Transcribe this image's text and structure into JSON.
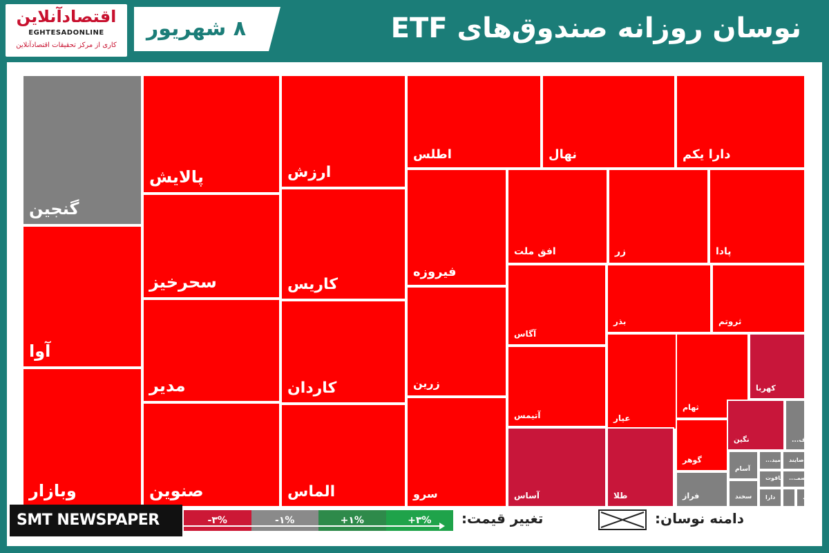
{
  "header": {
    "logo_title": "اقتصادآنلاین",
    "logo_en": "EGHTESADONLINE",
    "logo_tagline": "کاری از مرکز تحقیقات اقتصادآنلاین",
    "date": "۸ شهریور",
    "title": "نوسان روزانه صندوق‌های ETF"
  },
  "legend": {
    "price_change_label": "تغییر قیمت:",
    "range_label": "دامنه نوسان:",
    "scale": [
      "-۳%",
      "-۱%",
      "+۱%",
      "+۳%"
    ],
    "scale_colors": [
      "#cc1836",
      "#8a8a8a",
      "#2e8a4a",
      "#1fa34a"
    ]
  },
  "brand": "SMT NEWSPAPER",
  "chart_data": {
    "type": "treemap",
    "colors": {
      "negative": "#ff0000",
      "slight_negative": "#c8163a",
      "neutral": "#808080"
    },
    "tiles": [
      {
        "name": "گنجین",
        "color": "neutral"
      },
      {
        "name": "آوا",
        "color": "negative"
      },
      {
        "name": "وبازار",
        "color": "negative"
      },
      {
        "name": "پالایش",
        "color": "negative"
      },
      {
        "name": "سحرخیز",
        "color": "negative"
      },
      {
        "name": "مدیر",
        "color": "negative"
      },
      {
        "name": "صنوین",
        "color": "negative"
      },
      {
        "name": "ارزش",
        "color": "negative"
      },
      {
        "name": "کاریس",
        "color": "negative"
      },
      {
        "name": "کاردان",
        "color": "negative"
      },
      {
        "name": "الماس",
        "color": "negative"
      },
      {
        "name": "اطلس",
        "color": "negative"
      },
      {
        "name": "نهال",
        "color": "negative"
      },
      {
        "name": "دارا یکم",
        "color": "negative"
      },
      {
        "name": "فیروزه",
        "color": "negative"
      },
      {
        "name": "زرین",
        "color": "negative"
      },
      {
        "name": "سرو",
        "color": "negative"
      },
      {
        "name": "افق ملت",
        "color": "negative"
      },
      {
        "name": "زر",
        "color": "negative"
      },
      {
        "name": "پادا",
        "color": "negative"
      },
      {
        "name": "آگاس",
        "color": "negative"
      },
      {
        "name": "بذر",
        "color": "negative"
      },
      {
        "name": "ثروتم",
        "color": "negative"
      },
      {
        "name": "آتیمس",
        "color": "negative"
      },
      {
        "name": "عیار",
        "color": "negative"
      },
      {
        "name": "ثهام",
        "color": "negative"
      },
      {
        "name": "کهربا",
        "color": "slight_negative"
      },
      {
        "name": "گوهر",
        "color": "negative"
      },
      {
        "name": "نگین",
        "color": "slight_negative"
      },
      {
        "name": "اف...",
        "color": "neutral"
      },
      {
        "name": "آساس",
        "color": "slight_negative"
      },
      {
        "name": "طلا",
        "color": "slight_negative"
      },
      {
        "name": "فراز",
        "color": "neutral"
      },
      {
        "name": "آسام",
        "color": "neutral"
      },
      {
        "name": "امید...",
        "color": "neutral"
      },
      {
        "name": "صایند",
        "color": "neutral"
      },
      {
        "name": "یاقوت",
        "color": "neutral"
      },
      {
        "name": "تصمـ...",
        "color": "neutral"
      },
      {
        "name": "سخند",
        "color": "neutral"
      },
      {
        "name": "دارا",
        "color": "neutral"
      },
      {
        "name": "",
        "color": "neutral"
      },
      {
        "name": "ک...",
        "color": "neutral"
      }
    ]
  }
}
